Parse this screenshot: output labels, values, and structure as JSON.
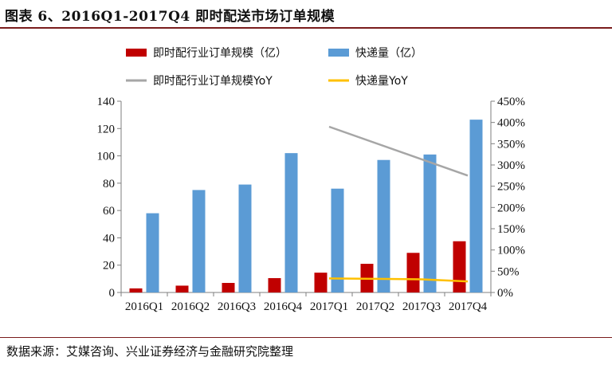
{
  "figure": {
    "title": "图表 6、2016Q1-2017Q4 即时配送市场订单规模",
    "source": "数据来源：艾媒咨询、兴业证券经济与金融研究院整理"
  },
  "colors": {
    "instant_bar": "#c00000",
    "express_bar": "#5b9bd5",
    "instant_yoy": "#a6a6a6",
    "express_yoy": "#ffc000",
    "rule": "#7a1c1c"
  },
  "chart_data": {
    "type": "bar",
    "categories": [
      "2016Q1",
      "2016Q2",
      "2016Q3",
      "2016Q4",
      "2017Q1",
      "2017Q2",
      "2017Q3",
      "2017Q4"
    ],
    "series": [
      {
        "name": "即时配行业订单规模（亿）",
        "kind": "bar",
        "axis": "left",
        "values": [
          3,
          5,
          7,
          10.5,
          14.5,
          21,
          29,
          37.5
        ]
      },
      {
        "name": "快递量（亿）",
        "kind": "bar",
        "axis": "left",
        "values": [
          58,
          75,
          79,
          102,
          76,
          97,
          101,
          126.5
        ]
      },
      {
        "name": "即时配行业订单规模YoY",
        "kind": "line",
        "axis": "right",
        "values": [
          null,
          null,
          null,
          null,
          390,
          null,
          null,
          275
        ]
      },
      {
        "name": "快递量YoY",
        "kind": "line",
        "axis": "right",
        "values": [
          null,
          null,
          null,
          null,
          33,
          32,
          31,
          26
        ]
      }
    ],
    "y_left": {
      "min": 0,
      "max": 140,
      "step": 20,
      "ticks": [
        "0",
        "20",
        "40",
        "60",
        "80",
        "100",
        "120",
        "140"
      ]
    },
    "y_right": {
      "min": 0,
      "max": 450,
      "step": 50,
      "ticks": [
        "0%",
        "50%",
        "100%",
        "150%",
        "200%",
        "250%",
        "300%",
        "350%",
        "400%",
        "450%"
      ]
    },
    "legend_position": "top"
  }
}
